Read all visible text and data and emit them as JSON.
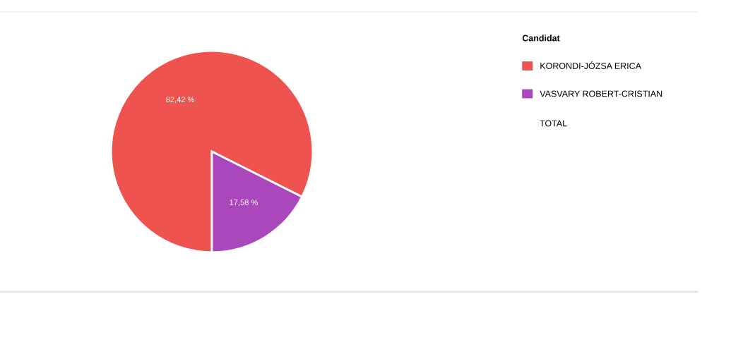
{
  "chart_data": {
    "type": "pie",
    "categories": [
      "KORONDI-JÓZSA ERICA",
      "VASVARY ROBERT-CRISTIAN"
    ],
    "values": [
      82.42,
      17.58
    ],
    "colors": [
      "#ee5350",
      "#ab47bc"
    ],
    "value_labels": [
      "82,42 %",
      "17,58 %"
    ],
    "legend_title": "Candidat",
    "legend": "top right",
    "annotations": [
      "TOTAL"
    ]
  }
}
